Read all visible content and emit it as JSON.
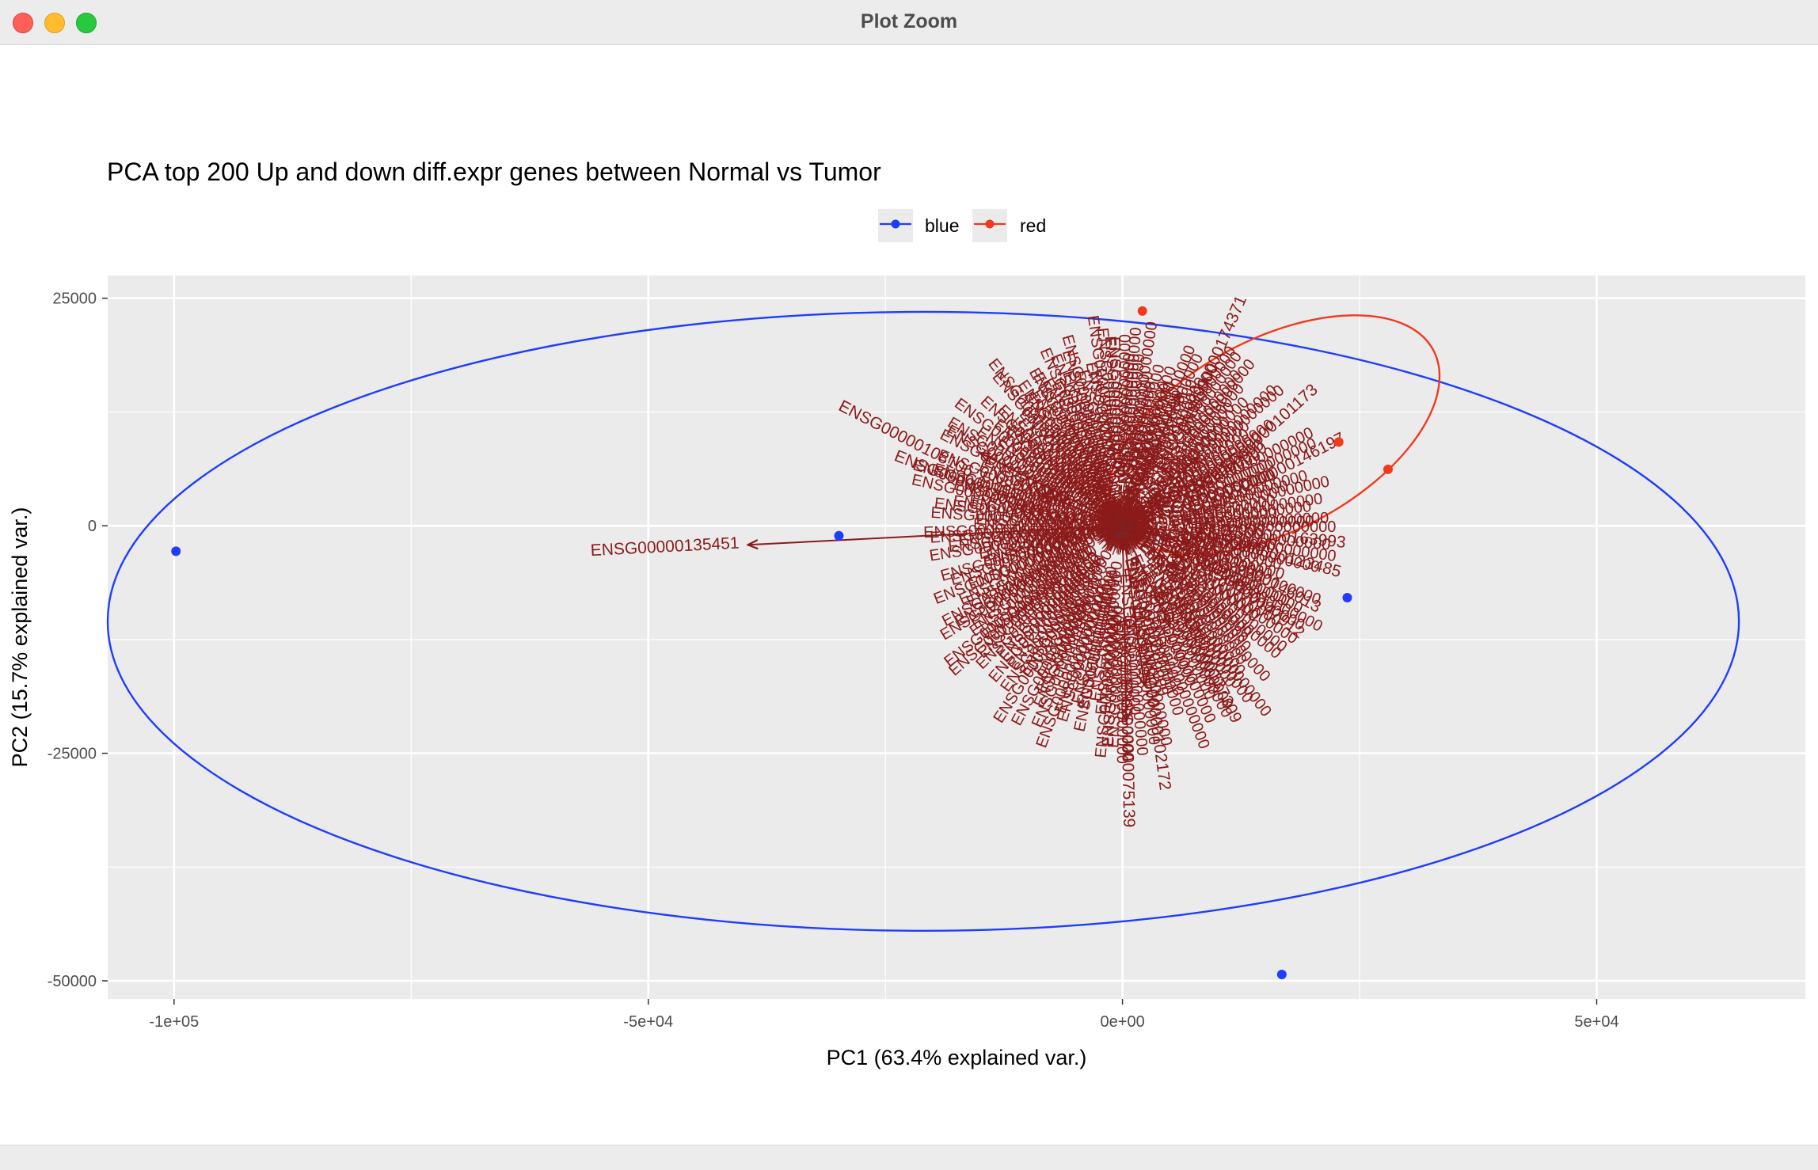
{
  "window": {
    "title": "Plot Zoom",
    "controls": [
      "close-button",
      "minimize-button",
      "maximize-button"
    ]
  },
  "colors": {
    "panel_bg": "#ebebeb",
    "grid": "#ffffff",
    "blue": "#1f3cff",
    "red": "#f03a1e",
    "arrow": "#8b1a1a",
    "label": "#8b1a1a"
  },
  "chart_data": {
    "type": "scatter",
    "title": "PCA top 200 Up and down diff.expr genes between Normal vs Tumor",
    "xlabel": "PC1 (63.4% explained var.)",
    "ylabel": "PC2 (15.7% explained var.)",
    "xlim": [
      -107000,
      72000
    ],
    "ylim": [
      -52000,
      27500
    ],
    "x_ticks": [
      -100000,
      -50000,
      0,
      50000
    ],
    "x_tick_labels": [
      "-1e+05",
      "-5e+04",
      "0e+00",
      "5e+04"
    ],
    "y_ticks": [
      25000,
      0,
      -25000,
      -50000
    ],
    "y_tick_labels": [
      "25000",
      "0",
      "-25000",
      "-50000"
    ],
    "grid": true,
    "legend": {
      "position": "top",
      "entries": [
        "blue",
        "red"
      ]
    },
    "series": [
      {
        "name": "blue",
        "color": "#1f3cff",
        "points": [
          [
            -99800,
            -2800
          ],
          [
            -29900,
            -1100
          ],
          [
            23700,
            -7900
          ],
          [
            16800,
            -49300
          ]
        ],
        "ellipse": {
          "center": [
            -21000,
            -10500
          ],
          "rx": 86000,
          "ry": 34000
        }
      },
      {
        "name": "red",
        "color": "#f03a1e",
        "points": [
          [
            2100,
            23600
          ],
          [
            22800,
            9200
          ],
          [
            28000,
            6200
          ]
        ],
        "ellipse": {
          "center": [
            16000,
            10000
          ],
          "rx": 19000,
          "ry": 10500,
          "rotation": -28
        }
      }
    ],
    "loadings": {
      "named_arrows": [
        {
          "label": "ENSG00000135451",
          "x": -39500,
          "y": -2100
        },
        {
          "label": "ENSG00000108106",
          "x": -15000,
          "y": 8000
        },
        {
          "label": "ENSG00000146197",
          "x": 8500,
          "y": 4500
        },
        {
          "label": "ENSG00000163993",
          "x": 7000,
          "y": -700
        },
        {
          "label": "ENSG00000123485",
          "x": 7000,
          "y": -2000
        },
        {
          "label": "ENSG00000146013",
          "x": 6200,
          "y": -3500
        },
        {
          "label": "ENSG00000147912",
          "x": 5900,
          "y": -4800
        },
        {
          "label": "ENSG00000137309",
          "x": 5000,
          "y": -11000
        },
        {
          "label": "ENSG00000102172",
          "x": 2300,
          "y": -17500
        },
        {
          "label": "ENSG00000075139",
          "x": 400,
          "y": -21500
        },
        {
          "label": "ENSG00000174371",
          "x": 6000,
          "y": 14500
        },
        {
          "label": "ENSG00000128000",
          "x": -8500,
          "y": 3500
        },
        {
          "label": "ENSG00000101173",
          "x": 8000,
          "y": 7500
        }
      ],
      "radial_label_text": "ENSG00000000000",
      "radial_label_count": 190
    }
  }
}
